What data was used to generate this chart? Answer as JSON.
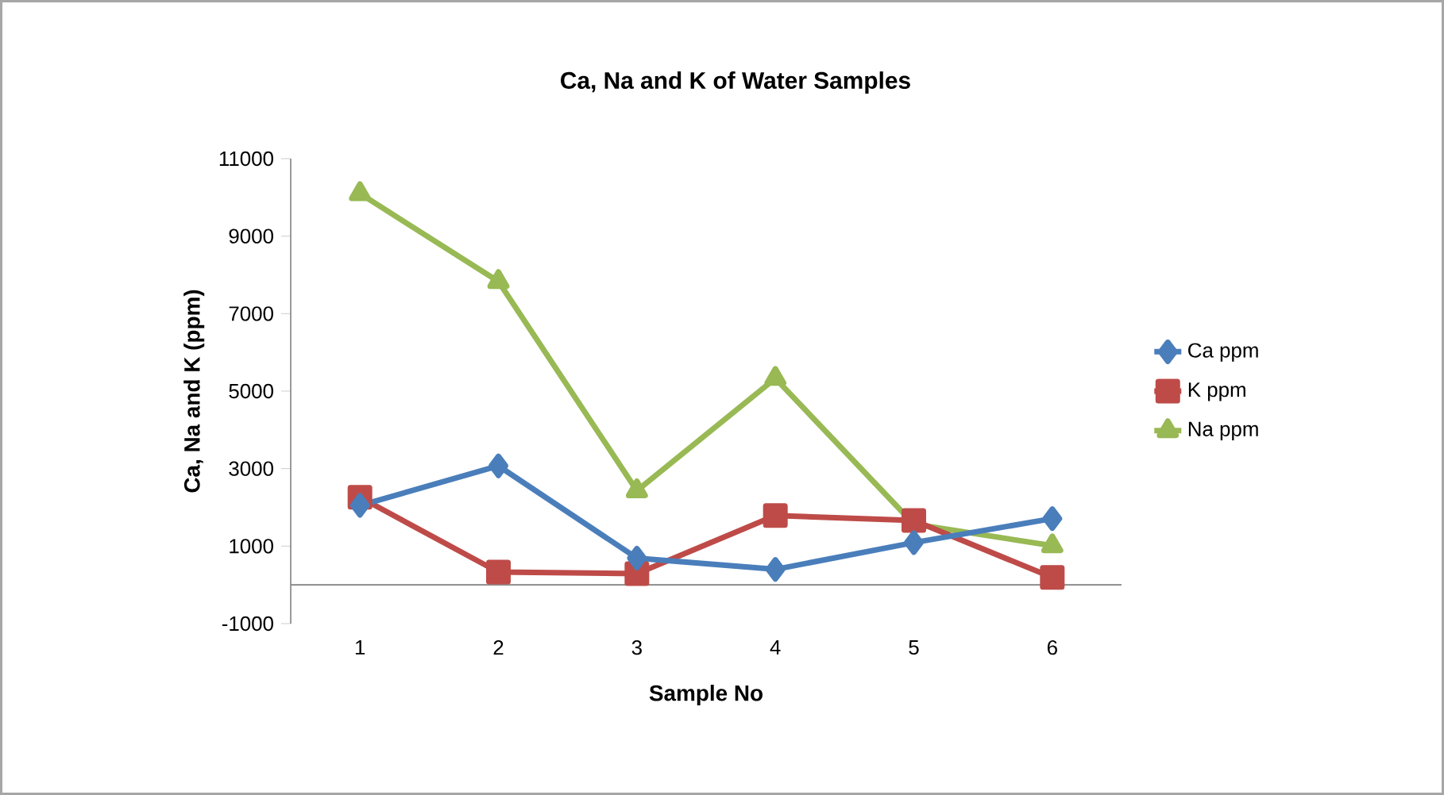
{
  "chart_data": {
    "type": "line",
    "title": "Ca, Na and K of Water Samples",
    "xlabel": "Sample No",
    "ylabel": "Ca, Na and K (ppm)",
    "categories": [
      "1",
      "2",
      "3",
      "4",
      "5",
      "6"
    ],
    "series": [
      {
        "name": "Ca ppm",
        "color": "#4a7ebb",
        "marker": "diamond",
        "values": [
          2050,
          3070,
          690,
          400,
          1090,
          1710
        ]
      },
      {
        "name": "K ppm",
        "color": "#be4b48",
        "marker": "square",
        "values": [
          2260,
          330,
          290,
          1790,
          1660,
          190
        ]
      },
      {
        "name": "Na ppm",
        "color": "#98b954",
        "marker": "triangle",
        "values": [
          10100,
          7830,
          2430,
          5330,
          1570,
          1010
        ]
      }
    ],
    "ylim": [
      -1000,
      11000
    ],
    "yticks": [
      -1000,
      1000,
      3000,
      5000,
      7000,
      9000,
      11000
    ],
    "legend": "right",
    "grid": false,
    "line_style": "solid"
  }
}
